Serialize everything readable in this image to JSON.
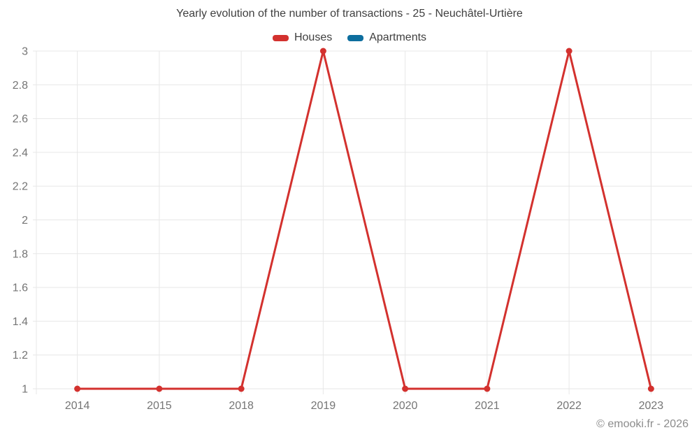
{
  "header": {
    "title": "Yearly evolution of the number of transactions - 25 - Neuchâtel-Urtière"
  },
  "legend": {
    "items": [
      {
        "label": "Houses",
        "color": "#d3312e"
      },
      {
        "label": "Apartments",
        "color": "#0d6e9e"
      }
    ]
  },
  "footer": {
    "watermark": "© emooki.fr - 2026"
  },
  "colors": {
    "background": "#ffffff",
    "grid": "#e7e7e7",
    "tick_label": "#757575",
    "title_text": "#3f3f3f",
    "watermark_text": "#8c8c8c",
    "houses": "#d3312e",
    "apartments": "#0d6e9e"
  },
  "chart_data": {
    "type": "line",
    "title": "Yearly evolution of the number of transactions - 25 - Neuchâtel-Urtière",
    "xlabel": "",
    "ylabel": "",
    "categories": [
      "2014",
      "2015",
      "2018",
      "2019",
      "2020",
      "2021",
      "2022",
      "2023"
    ],
    "series": [
      {
        "name": "Houses",
        "color": "#d3312e",
        "values": [
          1,
          1,
          1,
          3,
          1,
          1,
          3,
          1
        ]
      },
      {
        "name": "Apartments",
        "color": "#0d6e9e",
        "values": []
      }
    ],
    "ylim": [
      1,
      3
    ],
    "ytick_step": 0.2,
    "ytick_labels": [
      "1",
      "1.2",
      "1.4",
      "1.6",
      "1.8",
      "2",
      "2.2",
      "2.4",
      "2.6",
      "2.8",
      "3"
    ],
    "grid": true,
    "legend_position": "top",
    "point_radius": 4.5,
    "line_width": 3
  }
}
